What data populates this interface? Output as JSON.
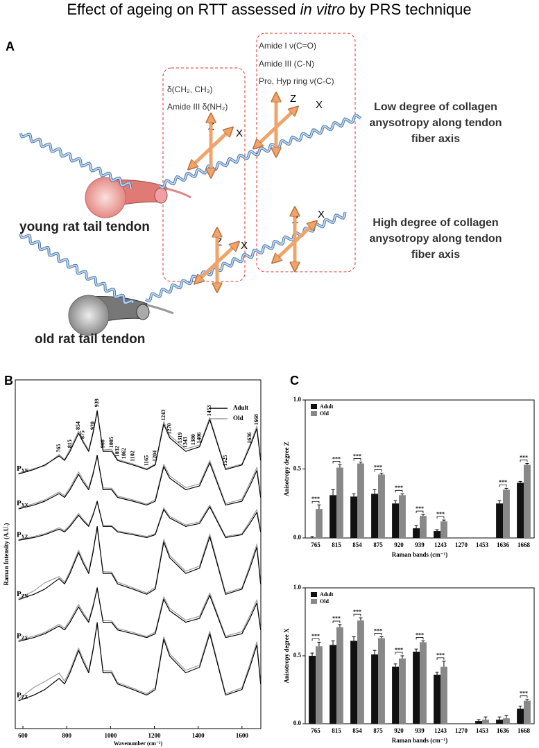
{
  "title_parts": [
    "Effect of ageing on RTT assessed ",
    "in vitro",
    " by PRS technique"
  ],
  "panels": [
    "A",
    "B",
    "C"
  ],
  "panel_a": {
    "box1": [
      "δ(CH₂, CH₃)",
      "Amide III δ(NH₂)"
    ],
    "box2": [
      "Amide I ν(C=O)",
      "Amide III (C-N)",
      "Pro, Hyp ring ν(C-C)"
    ],
    "young_label": "young rat tail tendon",
    "old_label": "old rat tail tendon",
    "young_text": [
      "Low degree of collagen",
      "anysotropy along tendon",
      "fiber axis"
    ],
    "old_text": [
      "High degree of collagen",
      "anysotropy along tendon",
      "fiber axis"
    ],
    "arrows": [
      {
        "z": "Z",
        "x": "X"
      },
      {
        "z": "Z",
        "x": "X"
      },
      {
        "z": "Z",
        "x": "X"
      },
      {
        "z": "Z",
        "x": "X"
      }
    ]
  },
  "chart_data": [
    {
      "type": "line",
      "xlabel": "Wavenumber (cm⁻¹)",
      "ylabel": "Raman Intensity (A.U.)",
      "xlim": [
        565,
        1686
      ],
      "xticks": [
        600,
        800,
        1000,
        1200,
        1400,
        1600
      ],
      "ylim": [
        0,
        100
      ],
      "legend": [
        {
          "name": "Adult",
          "color": "#000000"
        },
        {
          "name": "Old",
          "color": "#9a9a9a"
        }
      ],
      "x": [
        580,
        650,
        700,
        765,
        790,
        815,
        854,
        875,
        900,
        920,
        939,
        966,
        1005,
        1032,
        1102,
        1165,
        1204,
        1243,
        1270,
        1343,
        1406,
        1453,
        1525,
        1600,
        1636,
        1668,
        1685
      ],
      "peak_labels": [
        765,
        815,
        854,
        875,
        920,
        939,
        966,
        1005,
        1032,
        1062,
        1102,
        1165,
        1204,
        1243,
        1270,
        1319,
        1343,
        1380,
        1406,
        1453,
        1525,
        1636,
        1668
      ],
      "spectra": [
        {
          "label": "P",
          "sub": "XN",
          "adult": [
            73,
            74.3,
            75.6,
            78.2,
            76.9,
            79.5,
            84.7,
            82.1,
            79.5,
            84.7,
            91.2,
            79.5,
            79.5,
            76.9,
            75.6,
            74.3,
            75.6,
            87.3,
            83.4,
            79.5,
            80.8,
            88.6,
            74.3,
            75.6,
            80.8,
            86,
            76.9
          ],
          "old": [
            73.2,
            74.6,
            75.3,
            78.6,
            77.2,
            80.1,
            85.3,
            82.6,
            79.9,
            85.2,
            90.5,
            79.9,
            80.1,
            77.2,
            75.9,
            74.5,
            75.9,
            88.1,
            84.1,
            80.2,
            81.3,
            89.2,
            74.6,
            75.9,
            81.4,
            86.8,
            77.2
          ]
        },
        {
          "label": "P",
          "sub": "XX",
          "adult": [
            63,
            64.1,
            65.2,
            67.4,
            66.3,
            68.5,
            72.9,
            70.7,
            68.5,
            72.9,
            78.4,
            68.5,
            68.5,
            66.3,
            65.2,
            64.1,
            65.2,
            75.1,
            71.8,
            68.5,
            69.6,
            76.2,
            64.1,
            65.2,
            69.6,
            74,
            66.3
          ],
          "old": [
            63.3,
            64.5,
            65.6,
            67.9,
            66.8,
            69.1,
            73.6,
            71.3,
            69,
            73.4,
            77.8,
            69,
            68.9,
            66.7,
            65.6,
            64.4,
            65.7,
            75.8,
            72.5,
            69.1,
            70.2,
            76.9,
            64.5,
            65.8,
            70.4,
            74.9,
            66.7
          ]
        },
        {
          "label": "P",
          "sub": "XZ",
          "adult": [
            54,
            54.8,
            55.6,
            57.2,
            56.4,
            58,
            61.2,
            59.6,
            58,
            61.2,
            65.2,
            58,
            58,
            56.4,
            55.6,
            54.8,
            55.6,
            62.8,
            60.4,
            58,
            58.8,
            63.6,
            54.8,
            55.6,
            58.8,
            62,
            56.4
          ],
          "old": [
            54.2,
            55.1,
            55.9,
            57.6,
            56.8,
            58.4,
            61.7,
            60,
            58.3,
            61.6,
            64.8,
            58.3,
            58.2,
            56.7,
            55.9,
            55.1,
            55.9,
            63.3,
            60.9,
            58.4,
            59.3,
            64.1,
            55.1,
            55.9,
            59.5,
            62.8,
            56.7
          ]
        },
        {
          "label": "P",
          "sub": "ZN",
          "adult": [
            37,
            38.5,
            40,
            43,
            41.5,
            44.5,
            50.5,
            47.5,
            44.5,
            50.5,
            58,
            44.5,
            44.5,
            41.5,
            40,
            38.5,
            40,
            53.5,
            49,
            44.5,
            46,
            55,
            38.5,
            40,
            46,
            52,
            41.5
          ],
          "old": [
            37.3,
            39.5,
            41.8,
            43.6,
            42,
            45.1,
            51.2,
            48.1,
            45,
            51.1,
            57.2,
            45,
            44.9,
            42,
            40.4,
            38.9,
            40.5,
            54.3,
            49.7,
            45.1,
            46.6,
            55.8,
            38.9,
            40.4,
            46.8,
            52.9,
            41.9
          ]
        },
        {
          "label": "P",
          "sub": "ZX",
          "adult": [
            25,
            26.1,
            27.2,
            29.4,
            28.3,
            30.5,
            34.9,
            32.7,
            30.5,
            34.9,
            40.4,
            30.5,
            30.5,
            28.3,
            27.2,
            26.1,
            27.2,
            37.1,
            33.8,
            30.5,
            31.6,
            38.2,
            26.1,
            27.2,
            31.6,
            36,
            28.3
          ],
          "old": [
            25.3,
            26.5,
            27.6,
            29.9,
            28.8,
            31.1,
            35.6,
            33.3,
            31,
            35.4,
            39.8,
            31,
            30.9,
            28.7,
            27.6,
            26.4,
            27.7,
            37.8,
            34.5,
            31.1,
            32.2,
            38.9,
            26.5,
            27.8,
            32.4,
            36.9,
            28.7
          ]
        },
        {
          "label": "P",
          "sub": "ZZ",
          "adult": [
            8,
            9.6,
            11.2,
            14.4,
            12.8,
            16,
            22.4,
            19.2,
            16,
            22.4,
            30.4,
            16,
            16,
            12.8,
            11.2,
            9.6,
            11.2,
            25.6,
            20.8,
            16,
            17.6,
            27.2,
            9.6,
            11.2,
            17.6,
            24,
            12.8
          ],
          "old": [
            8.4,
            11.8,
            13.5,
            15.9,
            13.6,
            16.7,
            23.1,
            19.9,
            16.6,
            22.9,
            29.6,
            16.6,
            16.5,
            13.2,
            11.6,
            10,
            11.7,
            26.3,
            21.5,
            16.7,
            18.2,
            27.9,
            10,
            11.7,
            18.4,
            24.9,
            13.2
          ]
        }
      ]
    },
    {
      "type": "bar",
      "ylabel": "Anisotropy degree Z",
      "xlabel": "Raman bands (cm⁻¹)",
      "categories": [
        "765",
        "815",
        "854",
        "875",
        "920",
        "939",
        "1243",
        "1270",
        "1453",
        "1636",
        "1668"
      ],
      "ylim": [
        0,
        1
      ],
      "yticks": [
        {
          "value": 0,
          "label": "0.0"
        },
        0.5,
        {
          "value": 1,
          "label": "1.0"
        }
      ],
      "series": [
        {
          "name": "Adult",
          "color": "#111111",
          "values": [
            0,
            0.31,
            0.3,
            0.32,
            0.25,
            0.07,
            0.05,
            null,
            null,
            0.25,
            0.4
          ],
          "errors": [
            0.01,
            0.04,
            0.02,
            0.03,
            0.02,
            0.02,
            0.01,
            null,
            null,
            0.02,
            0.01
          ]
        },
        {
          "name": "Old",
          "color": "#888888",
          "values": [
            0.21,
            0.51,
            0.54,
            0.46,
            0.31,
            0.16,
            0.12,
            null,
            null,
            0.35,
            0.53
          ],
          "errors": [
            0.03,
            0.02,
            0.01,
            0.01,
            0.01,
            0.01,
            0.01,
            null,
            null,
            0.01,
            0.01
          ]
        }
      ],
      "significance": [
        "***",
        "***",
        "***",
        "***",
        "***",
        "***",
        "***",
        null,
        null,
        "***",
        "***"
      ]
    },
    {
      "type": "bar",
      "ylabel": "Anisotropy degree X",
      "xlabel": "Raman bands (cm⁻¹)",
      "categories": [
        "765",
        "815",
        "854",
        "875",
        "920",
        "939",
        "1243",
        "1270",
        "1453",
        "1636",
        "1668"
      ],
      "ylim": [
        0,
        1
      ],
      "yticks": [
        {
          "value": 0,
          "label": "0.0"
        },
        0.5,
        {
          "value": 1,
          "label": "1.0"
        }
      ],
      "series": [
        {
          "name": "Adult",
          "color": "#111111",
          "values": [
            0.5,
            0.58,
            0.61,
            0.51,
            0.42,
            0.53,
            0.36,
            null,
            0.02,
            0.03,
            0.11
          ],
          "errors": [
            0.02,
            0.03,
            0.03,
            0.03,
            0.02,
            0.02,
            0.02,
            null,
            0.01,
            0.02,
            0.02
          ]
        },
        {
          "name": "Old",
          "color": "#888888",
          "values": [
            0.57,
            0.71,
            0.76,
            0.63,
            0.48,
            0.6,
            0.42,
            null,
            0.03,
            0.04,
            0.17
          ],
          "errors": [
            0.03,
            0.02,
            0.02,
            0.01,
            0.02,
            0.01,
            0.04,
            null,
            0.02,
            0.02,
            0.01
          ]
        }
      ],
      "significance": [
        "***",
        "***",
        "***",
        "***",
        "***",
        "***",
        "***",
        null,
        null,
        null,
        "***"
      ]
    }
  ]
}
